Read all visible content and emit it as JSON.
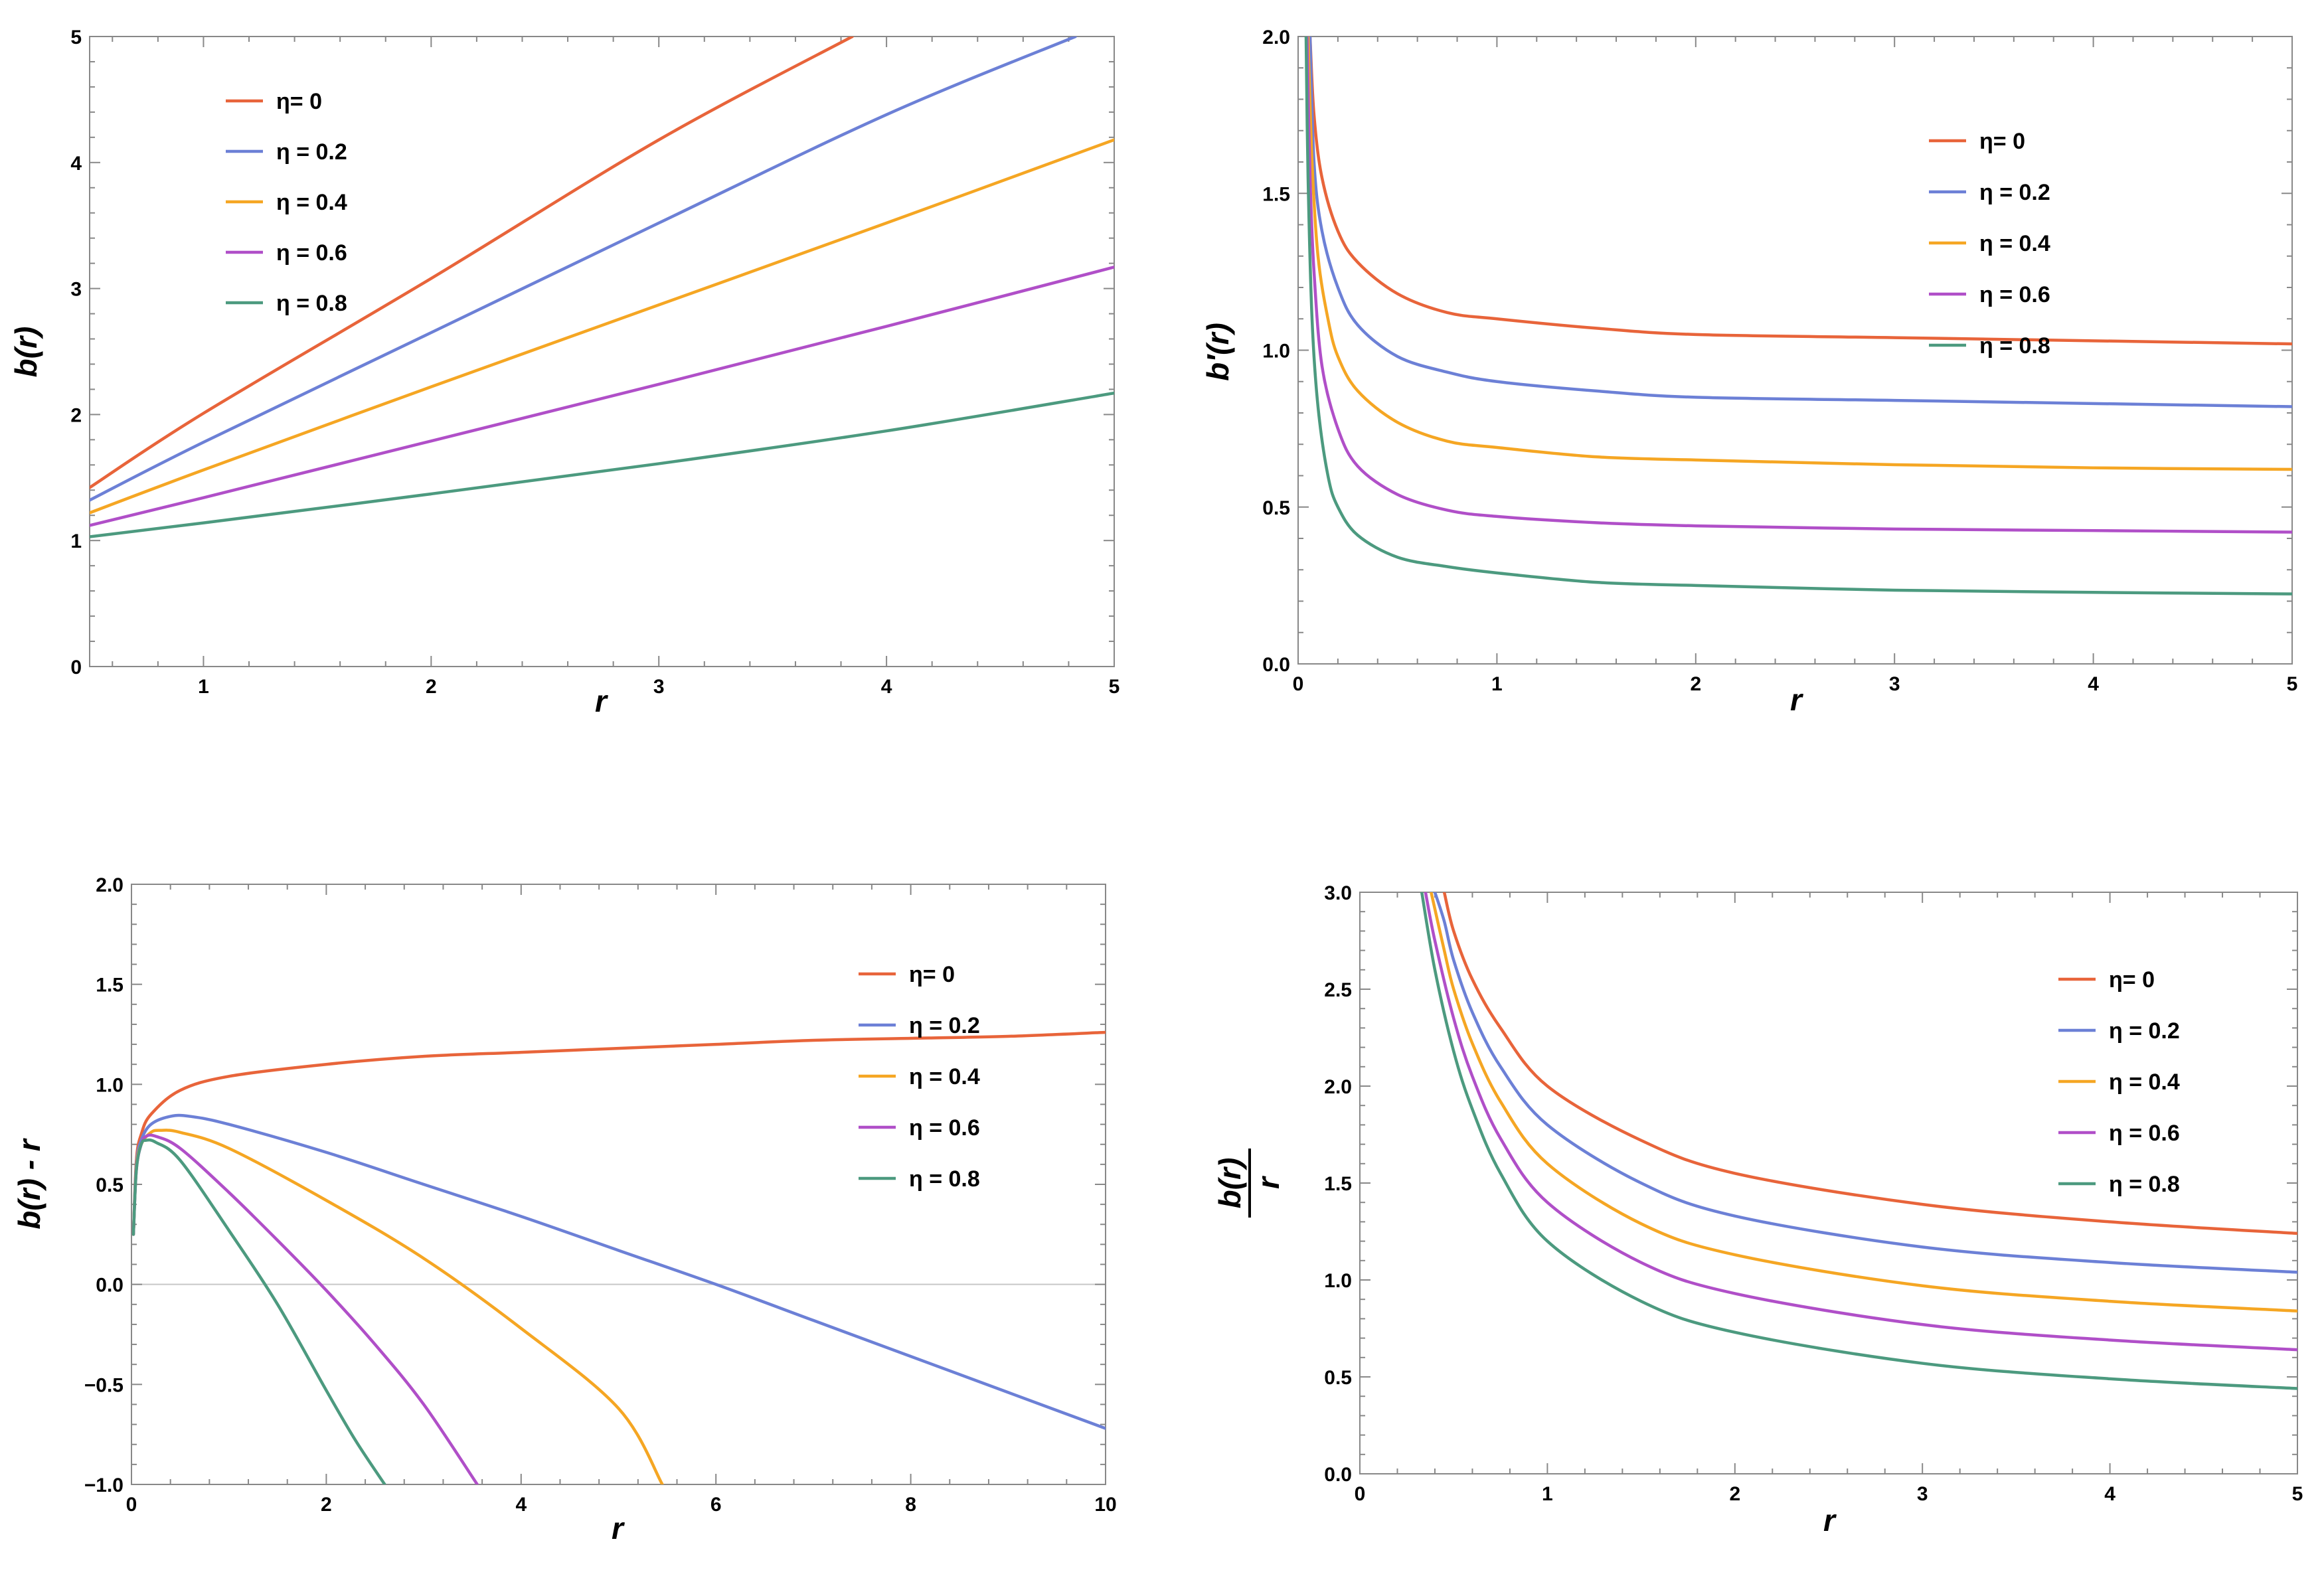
{
  "colors": {
    "eta_0": "#E8643A",
    "eta_0.2": "#6C80D6",
    "eta_0.4": "#F5A623",
    "eta_0.6": "#B04FC8",
    "eta_0.8": "#4C9A7F"
  },
  "chart_data": [
    {
      "type": "line",
      "panel": "top-left",
      "ylabel": "b(r)",
      "xlabel": "r",
      "xlim": [
        0.5,
        5
      ],
      "ylim": [
        0,
        5
      ],
      "xticks": [
        1,
        2,
        3,
        4,
        5
      ],
      "yticks": [
        0,
        1,
        2,
        3,
        4,
        5
      ],
      "xtick_labels": [
        "1",
        "2",
        "3",
        "4",
        "5"
      ],
      "ytick_labels": [
        "0",
        "1",
        "2",
        "3",
        "4",
        "5"
      ],
      "legend_position": "top-left",
      "series": [
        {
          "name": "η= 0",
          "color_key": "eta_0",
          "x": [
            0.5,
            1,
            2,
            3,
            3.85
          ],
          "y": [
            1.42,
            2.01,
            3.08,
            4.18,
            5.0
          ]
        },
        {
          "name": "η = 0.2",
          "color_key": "eta_0.2",
          "x": [
            0.5,
            1,
            2,
            3,
            4,
            4.83
          ],
          "y": [
            1.32,
            1.78,
            2.65,
            3.52,
            4.38,
            5.0
          ]
        },
        {
          "name": "η = 0.4",
          "color_key": "eta_0.4",
          "x": [
            0.5,
            1,
            2,
            3,
            4,
            5
          ],
          "y": [
            1.22,
            1.56,
            2.22,
            2.87,
            3.52,
            4.18
          ]
        },
        {
          "name": "η = 0.6",
          "color_key": "eta_0.6",
          "x": [
            0.5,
            1,
            2,
            3,
            4,
            5
          ],
          "y": [
            1.12,
            1.34,
            1.79,
            2.24,
            2.7,
            3.17
          ]
        },
        {
          "name": "η = 0.8",
          "color_key": "eta_0.8",
          "x": [
            0.5,
            1,
            2,
            3,
            4,
            5
          ],
          "y": [
            1.03,
            1.14,
            1.37,
            1.61,
            1.87,
            2.17
          ]
        }
      ]
    },
    {
      "type": "line",
      "panel": "top-right",
      "ylabel": "b′(r)",
      "xlabel": "r",
      "xlim": [
        0,
        5
      ],
      "ylim": [
        0,
        2.0
      ],
      "xticks": [
        0,
        1,
        2,
        3,
        4,
        5
      ],
      "yticks": [
        0,
        0.5,
        1.0,
        1.5,
        2.0
      ],
      "xtick_labels": [
        "0",
        "1",
        "2",
        "3",
        "4",
        "5"
      ],
      "ytick_labels": [
        "0.0",
        "0.5",
        "1.0",
        "1.5",
        "2.0"
      ],
      "legend_position": "top-right",
      "series": [
        {
          "name": "η= 0",
          "color_key": "eta_0",
          "x": [
            0.06,
            0.08,
            0.12,
            0.2,
            0.3,
            0.5,
            0.75,
            1,
            1.5,
            2,
            3,
            4,
            5
          ],
          "y": [
            2.0,
            1.75,
            1.55,
            1.38,
            1.28,
            1.18,
            1.12,
            1.1,
            1.07,
            1.05,
            1.04,
            1.03,
            1.02
          ]
        },
        {
          "name": "η = 0.2",
          "color_key": "eta_0.2",
          "x": [
            0.06,
            0.08,
            0.12,
            0.2,
            0.3,
            0.5,
            0.75,
            1,
            1.5,
            2,
            3,
            4,
            5
          ],
          "y": [
            2.0,
            1.6,
            1.38,
            1.2,
            1.08,
            0.98,
            0.93,
            0.9,
            0.87,
            0.85,
            0.84,
            0.83,
            0.82
          ]
        },
        {
          "name": "η = 0.4",
          "color_key": "eta_0.4",
          "x": [
            0.05,
            0.07,
            0.1,
            0.15,
            0.2,
            0.3,
            0.5,
            0.75,
            1,
            1.5,
            2,
            3,
            4,
            5
          ],
          "y": [
            2.0,
            1.6,
            1.3,
            1.1,
            0.98,
            0.87,
            0.77,
            0.71,
            0.69,
            0.66,
            0.65,
            0.635,
            0.625,
            0.62
          ]
        },
        {
          "name": "η = 0.6",
          "color_key": "eta_0.6",
          "x": [
            0.045,
            0.06,
            0.08,
            0.12,
            0.2,
            0.3,
            0.5,
            0.75,
            1,
            1.5,
            2,
            3,
            4,
            5
          ],
          "y": [
            2.0,
            1.55,
            1.25,
            0.95,
            0.75,
            0.63,
            0.54,
            0.49,
            0.47,
            0.45,
            0.44,
            0.43,
            0.425,
            0.42
          ]
        },
        {
          "name": "η = 0.8",
          "color_key": "eta_0.8",
          "x": [
            0.04,
            0.05,
            0.07,
            0.1,
            0.15,
            0.2,
            0.3,
            0.5,
            0.75,
            1,
            1.5,
            2,
            3,
            4,
            5
          ],
          "y": [
            2.0,
            1.55,
            1.1,
            0.82,
            0.6,
            0.5,
            0.41,
            0.34,
            0.31,
            0.29,
            0.26,
            0.25,
            0.235,
            0.228,
            0.223
          ]
        }
      ]
    },
    {
      "type": "line",
      "panel": "bottom-left",
      "ylabel": "b(r) - r",
      "xlabel": "r",
      "xlim": [
        0,
        10
      ],
      "ylim": [
        -1.0,
        2.0
      ],
      "xticks": [
        0,
        2,
        4,
        6,
        8,
        10
      ],
      "yticks": [
        -1.0,
        -0.5,
        0.0,
        0.5,
        1.0,
        1.5,
        2.0
      ],
      "xtick_labels": [
        "0",
        "2",
        "4",
        "6",
        "8",
        "10"
      ],
      "ytick_labels": [
        "−1.0",
        "−0.5",
        "0.0",
        "0.5",
        "1.0",
        "1.5",
        "2.0"
      ],
      "legend_position": "top-right",
      "series": [
        {
          "name": "η= 0",
          "color_key": "eta_0",
          "x": [
            0.02,
            0.05,
            0.1,
            0.2,
            0.5,
            1,
            2,
            3,
            4,
            5,
            6,
            7,
            8,
            9,
            10
          ],
          "y": [
            0.25,
            0.62,
            0.75,
            0.85,
            0.97,
            1.04,
            1.1,
            1.14,
            1.16,
            1.18,
            1.2,
            1.22,
            1.23,
            1.24,
            1.26
          ]
        },
        {
          "name": "η = 0.2",
          "color_key": "eta_0.2",
          "x": [
            0.02,
            0.05,
            0.1,
            0.2,
            0.4,
            0.6,
            1,
            2,
            3,
            4,
            5,
            6,
            7,
            8,
            9,
            10
          ],
          "y": [
            0.25,
            0.6,
            0.72,
            0.8,
            0.84,
            0.84,
            0.8,
            0.66,
            0.5,
            0.34,
            0.17,
            0.0,
            -0.18,
            -0.36,
            -0.54,
            -0.72
          ]
        },
        {
          "name": "η = 0.4",
          "color_key": "eta_0.4",
          "x": [
            0.02,
            0.05,
            0.1,
            0.2,
            0.3,
            0.5,
            1,
            2,
            3,
            4,
            5,
            5.45
          ],
          "y": [
            0.25,
            0.58,
            0.7,
            0.76,
            0.77,
            0.76,
            0.68,
            0.42,
            0.13,
            -0.22,
            -0.62,
            -1.0
          ]
        },
        {
          "name": "η = 0.6",
          "color_key": "eta_0.6",
          "x": [
            0.02,
            0.05,
            0.1,
            0.15,
            0.25,
            0.5,
            1,
            1.5,
            2,
            2.5,
            3,
            3.55
          ],
          "y": [
            0.25,
            0.57,
            0.7,
            0.74,
            0.74,
            0.68,
            0.46,
            0.22,
            -0.03,
            -0.3,
            -0.6,
            -1.0
          ]
        },
        {
          "name": "η = 0.8",
          "color_key": "eta_0.8",
          "x": [
            0.02,
            0.05,
            0.1,
            0.15,
            0.25,
            0.5,
            1,
            1.5,
            2,
            2.3,
            2.6
          ],
          "y": [
            0.25,
            0.57,
            0.7,
            0.72,
            0.71,
            0.62,
            0.27,
            -0.1,
            -0.53,
            -0.78,
            -1.0
          ]
        }
      ]
    },
    {
      "type": "line",
      "panel": "bottom-right",
      "ylabel_numerator": "b(r)",
      "ylabel_denominator": "r",
      "xlabel": "r",
      "xlim": [
        0,
        5
      ],
      "ylim": [
        0,
        3.0
      ],
      "xticks": [
        0,
        1,
        2,
        3,
        4,
        5
      ],
      "yticks": [
        0,
        0.5,
        1.0,
        1.5,
        2.0,
        2.5,
        3.0
      ],
      "xtick_labels": [
        "0",
        "1",
        "2",
        "3",
        "4",
        "5"
      ],
      "ytick_labels": [
        "0.0",
        "0.5",
        "1.0",
        "1.5",
        "2.0",
        "2.5",
        "3.0"
      ],
      "legend_position": "top-right",
      "series": [
        {
          "name": "η= 0",
          "color_key": "eta_0",
          "x": [
            0.45,
            0.5,
            0.6,
            0.75,
            1,
            1.5,
            2,
            3,
            4,
            5
          ],
          "y": [
            3.0,
            2.8,
            2.55,
            2.3,
            2.0,
            1.72,
            1.55,
            1.39,
            1.3,
            1.24
          ]
        },
        {
          "name": "η = 0.2",
          "color_key": "eta_0.2",
          "x": [
            0.4,
            0.45,
            0.5,
            0.6,
            0.75,
            1,
            1.5,
            2,
            3,
            4,
            5
          ],
          "y": [
            3.0,
            2.85,
            2.65,
            2.38,
            2.1,
            1.8,
            1.5,
            1.33,
            1.17,
            1.09,
            1.04
          ]
        },
        {
          "name": "η = 0.4",
          "color_key": "eta_0.4",
          "x": [
            0.38,
            0.45,
            0.5,
            0.6,
            0.75,
            1,
            1.5,
            2,
            3,
            4,
            5
          ],
          "y": [
            3.0,
            2.7,
            2.5,
            2.22,
            1.92,
            1.6,
            1.29,
            1.13,
            0.97,
            0.89,
            0.84
          ]
        },
        {
          "name": "η = 0.6",
          "color_key": "eta_0.6",
          "x": [
            0.35,
            0.4,
            0.5,
            0.6,
            0.75,
            1,
            1.5,
            2,
            3,
            4,
            5
          ],
          "y": [
            3.0,
            2.75,
            2.35,
            2.05,
            1.73,
            1.4,
            1.09,
            0.93,
            0.77,
            0.69,
            0.64
          ]
        },
        {
          "name": "η = 0.8",
          "color_key": "eta_0.8",
          "x": [
            0.33,
            0.4,
            0.5,
            0.6,
            0.75,
            1,
            1.5,
            2,
            3,
            4,
            5
          ],
          "y": [
            3.0,
            2.6,
            2.18,
            1.88,
            1.55,
            1.2,
            0.89,
            0.73,
            0.57,
            0.49,
            0.44
          ]
        }
      ]
    }
  ]
}
